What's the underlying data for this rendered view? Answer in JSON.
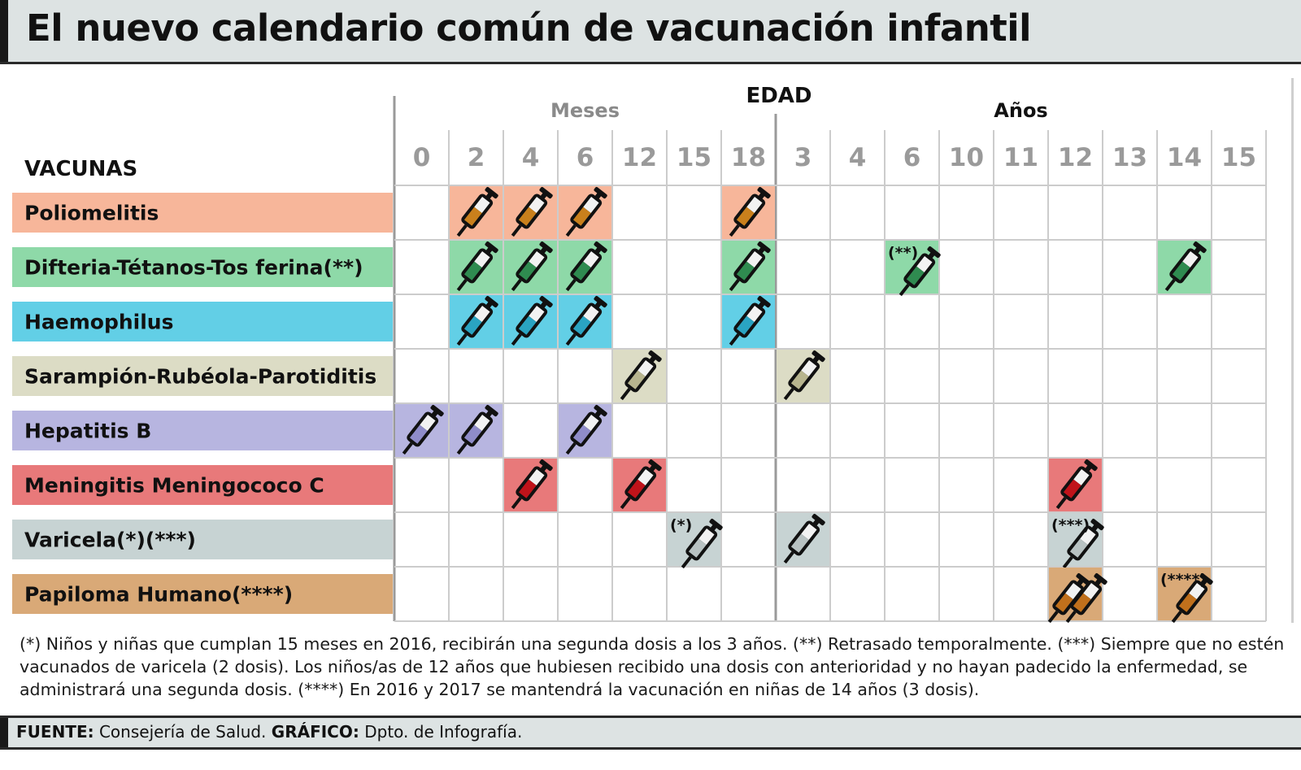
{
  "title": "El nuevo calendario común de vacunación infantil",
  "chart_data": {
    "type": "table",
    "row_header": "VACUNAS",
    "axis_title": "EDAD",
    "groups": [
      {
        "name": "Meses",
        "columns": [
          "0",
          "2",
          "4",
          "6",
          "12",
          "15",
          "18"
        ]
      },
      {
        "name": "Años",
        "columns": [
          "3",
          "4",
          "6",
          "10",
          "11",
          "12",
          "13",
          "14",
          "15"
        ]
      }
    ],
    "columns": [
      "0",
      "2",
      "4",
      "6",
      "12",
      "15",
      "18",
      "3",
      "4",
      "6",
      "10",
      "11",
      "12",
      "13",
      "14",
      "15"
    ],
    "rows": [
      {
        "name": "Poliomelitis",
        "color": "#f7b69a",
        "syringe": "#c9801c",
        "doses": [
          {
            "col": 1
          },
          {
            "col": 2
          },
          {
            "col": 3
          },
          {
            "col": 6
          }
        ]
      },
      {
        "name": "Difteria-Tétanos-Tos ferina(**)",
        "color": "#8ed9a8",
        "syringe": "#2f8b50",
        "doses": [
          {
            "col": 1
          },
          {
            "col": 2
          },
          {
            "col": 3
          },
          {
            "col": 6
          },
          {
            "col": 9,
            "note": "(**)"
          },
          {
            "col": 14
          }
        ]
      },
      {
        "name": "Haemophilus",
        "color": "#62cfe6",
        "syringe": "#2aa4c2",
        "doses": [
          {
            "col": 1
          },
          {
            "col": 2
          },
          {
            "col": 3
          },
          {
            "col": 6
          }
        ]
      },
      {
        "name": "Sarampión-Rubéola-Parotiditis",
        "color": "#dcdcc5",
        "syringe": "#b7b48e",
        "doses": [
          {
            "col": 4
          },
          {
            "col": 7
          }
        ]
      },
      {
        "name": "Hepatitis B",
        "color": "#b7b5e0",
        "syringe": "#8f8cc9",
        "doses": [
          {
            "col": 0
          },
          {
            "col": 1
          },
          {
            "col": 3
          }
        ]
      },
      {
        "name": "Meningitis Meningococo C",
        "color": "#e8797a",
        "syringe": "#c0131a",
        "doses": [
          {
            "col": 2
          },
          {
            "col": 4
          },
          {
            "col": 12
          }
        ]
      },
      {
        "name": "Varicela(*)(***)",
        "color": "#c7d3d3",
        "syringe": "#b8c2c2",
        "doses": [
          {
            "col": 5,
            "note": "(*)"
          },
          {
            "col": 7
          },
          {
            "col": 12,
            "note": "(***)"
          }
        ]
      },
      {
        "name": "Papiloma Humano(****)",
        "color": "#d9a977",
        "syringe": "#c0701c",
        "doses": [
          {
            "col": 12,
            "count": 2
          },
          {
            "col": 14,
            "note": "(****)"
          }
        ]
      }
    ]
  },
  "notes": [
    "(*) Niños y niñas que cumplan 15 meses en 2016, recibirán una segunda dosis a los 3 años.",
    "(**) Retrasado temporalmente.",
    "(***) Siempre que no estén vacunados de varicela (2 dosis). Los niños/as de 12 años que hubiesen recibido una dosis con anterioridad y no hayan padecido la enfermedad, se administrará una segunda dosis.",
    "(****) En 2016 y 2017 se mantendrá la vacunación en niñas de 14 años (3 dosis)."
  ],
  "source": {
    "label_1": "FUENTE:",
    "text_1": "Consejería de Salud.",
    "label_2": "GRÁFICO:",
    "text_2": "Dpto. de Infografía."
  }
}
